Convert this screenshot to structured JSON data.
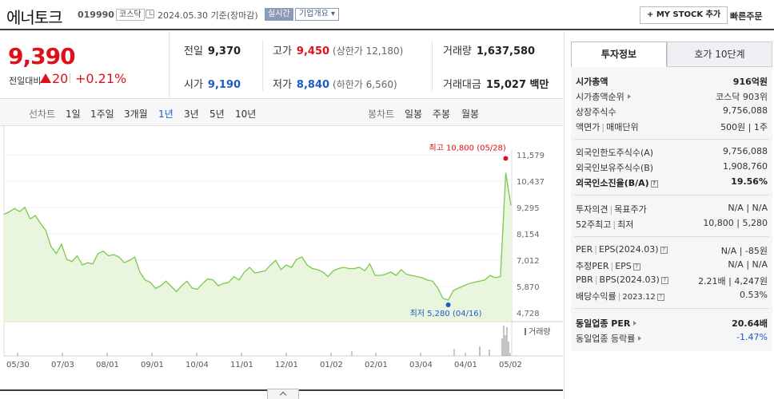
{
  "header": {
    "name": "에너토크",
    "code": "019990",
    "market": "코스닥",
    "date": "2024.05.30 기준(장마감)",
    "realtime": "실시간",
    "company": "기업개요 ▾",
    "my_stock": "+ MY STOCK 추가",
    "quick_order": "빠른주문"
  },
  "price": {
    "current": "9,390",
    "change_label": "전일대비",
    "change_amount": "20",
    "change_rate": "+0.21%",
    "prev_label": "전일",
    "prev": "9,370",
    "high_label": "고가",
    "high": "9,450",
    "upper_limit": "(상한가 12,180)",
    "volume_label": "거래량",
    "volume": "1,637,580",
    "open_label": "시가",
    "open": "9,190",
    "low_label": "저가",
    "low": "8,840",
    "lower_limit": "(하한가 6,560)",
    "amount_label": "거래대금",
    "amount": "15,027 백만"
  },
  "periods": {
    "line_label": "선차트",
    "line": [
      "1일",
      "1주일",
      "3개월",
      "1년",
      "3년",
      "5년",
      "10년"
    ],
    "selected": "1년",
    "candle_label": "봉차트",
    "candle": [
      "일봉",
      "주봉",
      "월봉"
    ]
  },
  "chart_data": {
    "type": "area",
    "series": [
      {
        "values": [
          9000,
          9100,
          9250,
          9120,
          9300,
          8800,
          8950,
          8600,
          8300,
          7600,
          7300,
          7700,
          7050,
          6950,
          7200,
          6800,
          6900,
          6850,
          7300,
          7400,
          7200,
          7250,
          7150,
          6900,
          7000,
          7150,
          6500,
          6150,
          6050,
          5780,
          5900,
          6100,
          5870,
          5650,
          5900,
          6100,
          5800,
          5750,
          6000,
          6200,
          6150,
          5900,
          6000,
          6050,
          6300,
          6150,
          6500,
          6700,
          6450,
          6500,
          6550,
          6800,
          7000,
          6600,
          6800,
          6700,
          7050,
          7150,
          6800,
          6650,
          6600,
          6500,
          6300,
          6550,
          6650,
          6700,
          6650,
          6650,
          6700,
          6550,
          6850,
          6350,
          6350,
          6400,
          6500,
          6350,
          6600,
          6400,
          6350,
          6300,
          6250,
          6150,
          6100,
          5800,
          5350,
          5280,
          5700,
          5800,
          5900,
          6000,
          6050,
          6100,
          6150,
          6350,
          6250,
          6300,
          10800,
          9390
        ]
      }
    ],
    "x_labels": [
      "05/30",
      "07/03",
      "08/01",
      "09/01",
      "10/04",
      "11/01",
      "12/01",
      "01/02",
      "02/01",
      "03/04",
      "04/01",
      "05/02"
    ],
    "y_ticks": [
      "11,579",
      "10,437",
      "9,295",
      "8,154",
      "7,012",
      "5,870",
      "4,728"
    ],
    "ylim": [
      4728,
      11579
    ],
    "max_label": "최고 10,800 (05/28)",
    "min_label": "최저 5,280 (04/16)",
    "volume_label": "거래량",
    "colors": {
      "line": "#7ac94f",
      "fill": "#e9f5dc",
      "max": "#e0101b",
      "min": "#1e5bc6"
    }
  },
  "side": {
    "tab_invest": "투자정보",
    "tab_hoga": "호가 10단계",
    "market_cap_label": "시가총액",
    "market_cap": "916억원",
    "cap_rank_label": "시가총액순위",
    "cap_rank": "코스닥 903위",
    "shares_label": "상장주식수",
    "shares": "9,756,088",
    "face_label": "액면가",
    "unit_label": "매매단위",
    "face_unit": "500원 | 1주",
    "foreign_limit_label": "외국인한도주식수(A)",
    "foreign_limit": "9,756,088",
    "foreign_hold_label": "외국인보유주식수(B)",
    "foreign_hold": "1,908,760",
    "foreign_ratio_label": "외국인소진율(B/A)",
    "foreign_ratio": "19.56%",
    "opinion_label": "투자의견",
    "target_label": "목표주가",
    "opinion_target": "N/A | N/A",
    "w52_label": "52주최고",
    "w52_low_label": "최저",
    "w52": "10,800 | 5,280",
    "per_label": "PER",
    "eps_label": "EPS(2024.03)",
    "per_eps": "N/A | -85원",
    "est_per_label": "추정PER",
    "est_eps_label": "EPS",
    "est_per_eps": "N/A | N/A",
    "pbr_label": "PBR",
    "bps_label": "BPS(2024.03)",
    "pbr_bps": "2.21배 | 4,247원",
    "div_label": "배당수익률",
    "div_date": "2023.12",
    "div": "0.53%",
    "sector_per_label": "동일업종 PER",
    "sector_per": "20.64배",
    "sector_rate_label": "동일업종 등락률",
    "sector_rate": "-1.47%"
  }
}
